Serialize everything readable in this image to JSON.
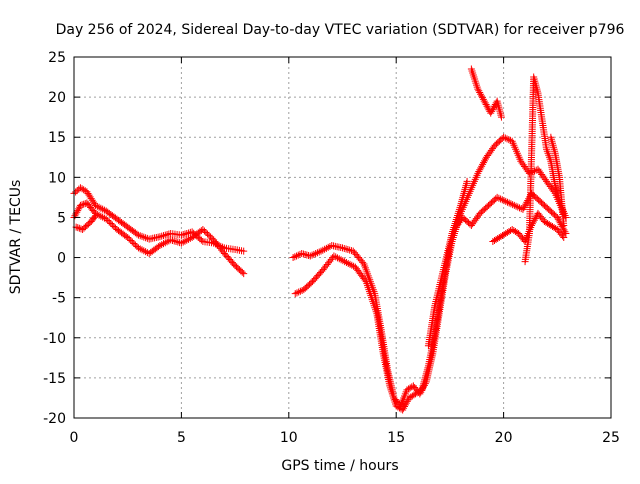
{
  "chart_data": {
    "type": "scatter",
    "title": "Day 256 of 2024, Sidereal Day-to-day VTEC variation (SDTVAR) for receiver p796",
    "xlabel": "GPS time / hours",
    "ylabel": "SDTVAR / TECUs",
    "xlim": [
      0,
      25
    ],
    "ylim": [
      -20,
      25
    ],
    "xticks": [
      0,
      5,
      10,
      15,
      20,
      25
    ],
    "yticks": [
      -20,
      -15,
      -10,
      -5,
      0,
      5,
      10,
      15,
      20,
      25
    ],
    "grid": true,
    "marker": "+",
    "color": "#ff0000",
    "series": [
      {
        "x": [
          0.0,
          0.3,
          0.6,
          1.0,
          1.5,
          2.0,
          2.5,
          3.0,
          3.5,
          4.0,
          4.5,
          5.0,
          5.5,
          6.0,
          6.5,
          7.0,
          7.5,
          7.9
        ],
        "y": [
          8.0,
          8.7,
          8.2,
          6.5,
          5.8,
          4.8,
          3.8,
          2.8,
          2.3,
          2.6,
          3.0,
          2.8,
          3.2,
          2.0,
          1.8,
          1.2,
          1.0,
          0.8
        ]
      },
      {
        "x": [
          0.0,
          0.3,
          0.6,
          1.0,
          1.5,
          2.0,
          2.5,
          3.0,
          3.5,
          4.0,
          4.5,
          5.0,
          5.5,
          6.0,
          6.5,
          7.0,
          7.5,
          7.9
        ],
        "y": [
          5.0,
          6.5,
          6.8,
          5.5,
          4.8,
          3.5,
          2.5,
          1.2,
          0.5,
          1.5,
          2.2,
          1.8,
          2.5,
          3.5,
          2.2,
          0.5,
          -1.0,
          -2.0
        ]
      },
      {
        "x": [
          0.1,
          0.4,
          0.8,
          1.0
        ],
        "y": [
          3.8,
          3.5,
          4.5,
          5.2
        ]
      },
      {
        "x": [
          10.2,
          10.6,
          11.0,
          11.5,
          12.0,
          12.5,
          13.0,
          13.5,
          14.0,
          14.3,
          14.6,
          14.9,
          15.2,
          15.5,
          15.8,
          16.1,
          16.4,
          16.7,
          17.0,
          17.3,
          17.6,
          18.0,
          18.4,
          18.8,
          19.2,
          19.6,
          20.0,
          20.4,
          20.8,
          21.2,
          21.6,
          22.0,
          22.4,
          22.8
        ],
        "y": [
          0.0,
          0.5,
          0.2,
          0.8,
          1.5,
          1.2,
          0.8,
          -0.8,
          -4.5,
          -9.0,
          -14.0,
          -17.5,
          -18.5,
          -16.5,
          -16.0,
          -17.0,
          -15.5,
          -12.0,
          -7.0,
          -2.0,
          2.0,
          5.5,
          8.0,
          10.5,
          12.5,
          14.0,
          15.0,
          14.5,
          12.0,
          10.5,
          11.0,
          9.5,
          8.0,
          5.5
        ]
      },
      {
        "x": [
          10.3,
          10.7,
          11.1,
          11.6,
          12.1,
          12.6,
          13.1,
          13.6,
          14.1,
          14.4,
          14.7,
          15.0,
          15.3,
          15.6,
          15.9,
          16.2,
          16.5,
          16.8,
          17.1,
          17.4,
          17.7,
          18.1,
          18.5,
          18.9,
          19.3,
          19.7,
          20.1,
          20.5,
          20.9,
          21.3,
          21.7,
          22.1,
          22.5,
          22.9
        ],
        "y": [
          -4.5,
          -4.0,
          -3.0,
          -1.5,
          0.2,
          -0.5,
          -1.2,
          -3.0,
          -7.0,
          -12.0,
          -16.0,
          -18.5,
          -19.0,
          -17.5,
          -17.0,
          -16.5,
          -13.5,
          -9.5,
          -4.5,
          0.0,
          3.5,
          5.0,
          4.0,
          5.5,
          6.5,
          7.5,
          7.0,
          6.5,
          6.0,
          8.0,
          7.0,
          6.0,
          5.0,
          3.0
        ]
      },
      {
        "x": [
          16.5,
          16.8,
          17.2,
          17.6,
          18.0,
          18.3
        ],
        "y": [
          -11.0,
          -6.0,
          -1.5,
          3.0,
          6.5,
          9.5
        ]
      },
      {
        "x": [
          18.5,
          18.8,
          19.1,
          19.4,
          19.7,
          19.9
        ],
        "y": [
          23.5,
          21.0,
          19.5,
          18.0,
          19.5,
          17.5
        ]
      },
      {
        "x": [
          19.5,
          19.8,
          20.1,
          20.4,
          20.7,
          21.0,
          21.3,
          21.6,
          21.9,
          22.2,
          22.5,
          22.8
        ],
        "y": [
          2.0,
          2.5,
          3.0,
          3.5,
          3.0,
          2.0,
          4.0,
          5.5,
          4.5,
          4.0,
          3.5,
          2.5
        ]
      },
      {
        "x": [
          21.0,
          21.2,
          21.4,
          21.6,
          21.8,
          22.0,
          22.2,
          22.4,
          22.6,
          22.9
        ],
        "y": [
          -0.5,
          3.0,
          22.5,
          20.5,
          17.0,
          13.5,
          12.0,
          9.0,
          7.0,
          5.0
        ]
      },
      {
        "x": [
          22.2,
          22.4,
          22.6,
          22.8
        ],
        "y": [
          15.0,
          13.0,
          10.0,
          4.0
        ]
      }
    ]
  }
}
